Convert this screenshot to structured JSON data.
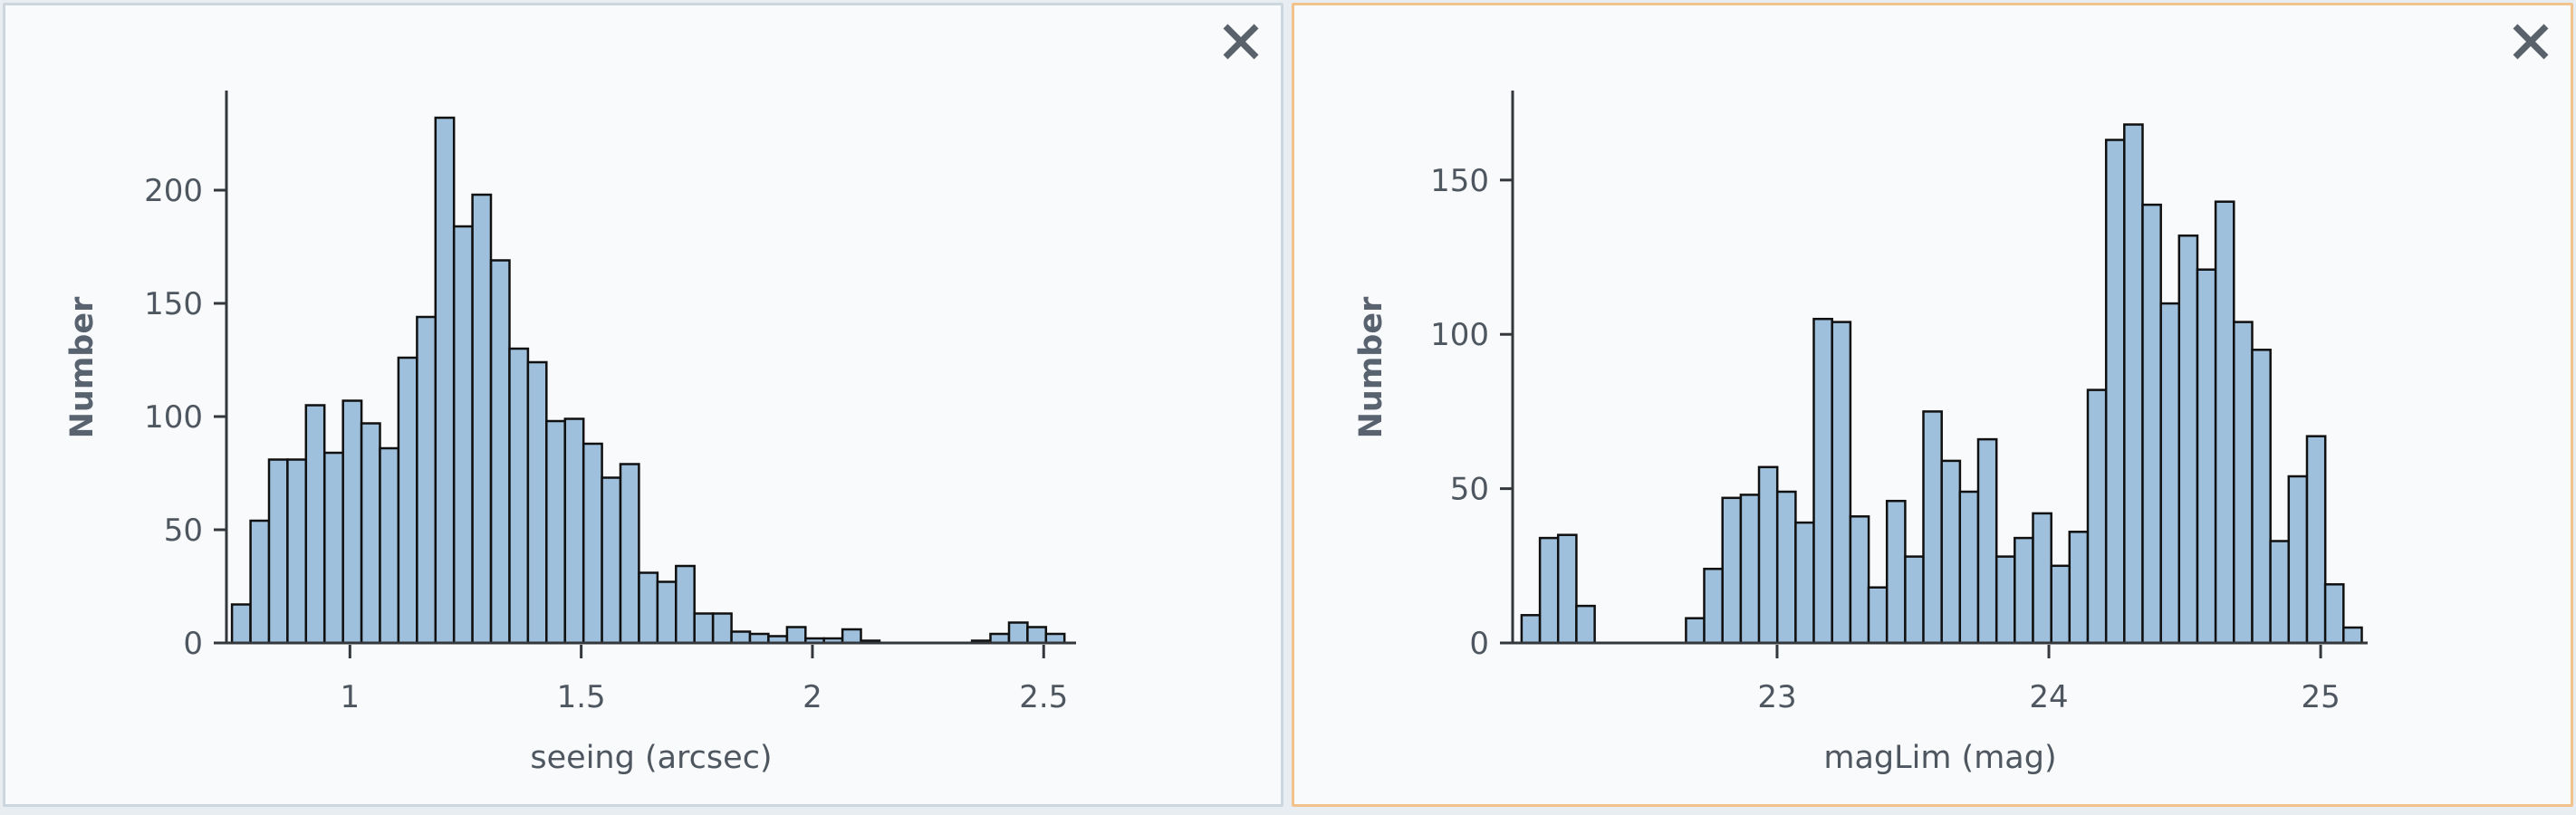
{
  "page": {
    "background_color": "#e8edf2"
  },
  "panels": [
    {
      "name": "seeing-histogram-panel",
      "selected": false,
      "border_color": "#ccd6de",
      "background_color": "#f9fafc",
      "close_icon": "x-cross"
    },
    {
      "name": "maglim-histogram-panel",
      "selected": true,
      "border_color": "#f2c28c",
      "background_color": "#f9fafc",
      "close_icon": "x-cross"
    }
  ],
  "chart_data": [
    {
      "type": "bar",
      "subtype": "histogram",
      "title": "",
      "xlabel": "seeing (arcsec)",
      "ylabel": "Number",
      "legend": "none",
      "grid": "off",
      "bar_color": "#9ec0dc",
      "bar_edge_color": "#101010",
      "axis_color": "#34383d",
      "label_color": "#4e5760",
      "xlim": [
        0.733,
        2.57
      ],
      "ylim": [
        0,
        244
      ],
      "x_ticks": [
        1,
        1.5,
        2,
        2.5
      ],
      "x_tick_labels": [
        "1",
        "1.5",
        "2",
        "2.5"
      ],
      "y_ticks": [
        0,
        50,
        100,
        150,
        200
      ],
      "y_tick_labels": [
        "0",
        "50",
        "100",
        "150",
        "200"
      ],
      "bins": {
        "start": 0.745,
        "width": 0.04
      },
      "counts": [
        17,
        54,
        81,
        81,
        105,
        84,
        107,
        97,
        86,
        126,
        144,
        232,
        184,
        198,
        169,
        130,
        124,
        98,
        99,
        88,
        73,
        79,
        31,
        27,
        34,
        13,
        13,
        5,
        4,
        3,
        7,
        2,
        2,
        6,
        1,
        0,
        0,
        0,
        0,
        0,
        1,
        4,
        9,
        7,
        4
      ]
    },
    {
      "type": "bar",
      "subtype": "histogram",
      "title": "",
      "xlabel": "magLim (mag)",
      "ylabel": "Number",
      "legend": "none",
      "grid": "off",
      "bar_color": "#9ec0dc",
      "bar_edge_color": "#101010",
      "axis_color": "#34383d",
      "label_color": "#4e5760",
      "xlim": [
        22.027,
        25.173
      ],
      "ylim": [
        0,
        179
      ],
      "x_ticks": [
        23,
        24,
        25
      ],
      "x_tick_labels": [
        "23",
        "24",
        "25"
      ],
      "y_ticks": [
        0,
        50,
        100,
        150
      ],
      "y_tick_labels": [
        "0",
        "50",
        "100",
        "150"
      ],
      "bins": {
        "start": 22.06,
        "width": 0.0672
      },
      "counts": [
        9,
        34,
        35,
        12,
        0,
        0,
        0,
        0,
        0,
        8,
        24,
        47,
        48,
        57,
        49,
        39,
        105,
        104,
        41,
        18,
        46,
        28,
        75,
        59,
        49,
        66,
        28,
        34,
        42,
        25,
        36,
        82,
        163,
        168,
        142,
        110,
        132,
        121,
        143,
        104,
        95,
        33,
        54,
        67,
        19,
        5
      ]
    }
  ]
}
